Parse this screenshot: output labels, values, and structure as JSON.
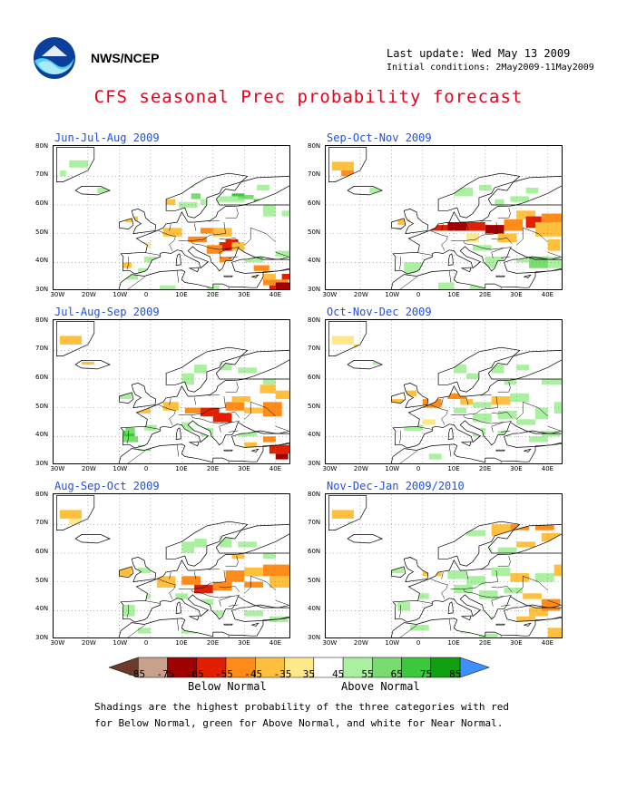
{
  "header": {
    "agency": "NWS/NCEP",
    "last_update": "Last update: Wed May 13 2009",
    "initial_conditions": "Initial conditions: 2May2009-11May2009",
    "title": "CFS seasonal Prec probability forecast"
  },
  "axes": {
    "lat_labels": [
      "80N",
      "70N",
      "60N",
      "50N",
      "40N",
      "30N"
    ],
    "lon_labels": [
      "30W",
      "20W",
      "10W",
      "0",
      "10E",
      "20E",
      "30E",
      "40E"
    ]
  },
  "panels": [
    {
      "title": "Jun-Jul-Aug 2009",
      "pattern": "jja"
    },
    {
      "title": "Sep-Oct-Nov 2009",
      "pattern": "son"
    },
    {
      "title": "Jul-Aug-Sep 2009",
      "pattern": "jas"
    },
    {
      "title": "Oct-Nov-Dec 2009",
      "pattern": "ond"
    },
    {
      "title": "Aug-Sep-Oct 2009",
      "pattern": "aso"
    },
    {
      "title": "Nov-Dec-Jan 2009/2010",
      "pattern": "ndj"
    }
  ],
  "colorbar": {
    "labels": [
      "-85",
      "-75",
      "-65",
      "-55",
      "-45",
      "-35",
      "35",
      "45",
      "55",
      "65",
      "75",
      "85"
    ],
    "colors": [
      "#6b3a2a",
      "#c8a08c",
      "#a00000",
      "#e02000",
      "#ff8c1a",
      "#ffc040",
      "#ffe88a",
      "#ffffff",
      "#aaf0a0",
      "#78dc6e",
      "#3cc83c",
      "#10a010",
      "#3f8fff"
    ],
    "below_label": "Below Normal",
    "above_label": "Above Normal"
  },
  "footer": {
    "line1": "Shadings are the highest probability of the three categories with red",
    "line2": "for Below Normal, green for Above Normal, and white for Near Normal."
  },
  "colors": {
    "title": "#e8001c",
    "panel_title": "#1f4fe6",
    "land_default": "#ffffff",
    "coast": "#000000"
  }
}
